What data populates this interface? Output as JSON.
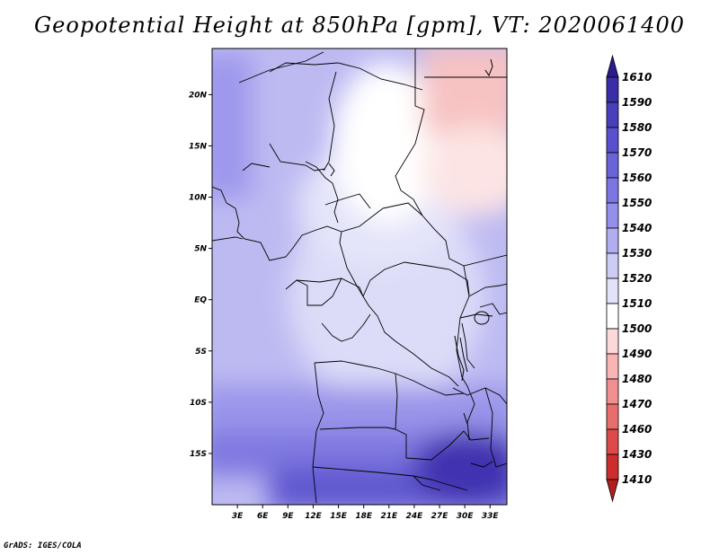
{
  "title": "Geopotential Height at 850hPa [gpm], VT: 2020061400",
  "footer": "GrADS: IGES/COLA",
  "map": {
    "lon_range": [
      0,
      35
    ],
    "lat_range": [
      -20,
      24.5
    ],
    "lon_ticks": [
      "3E",
      "6E",
      "9E",
      "12E",
      "15E",
      "18E",
      "21E",
      "24E",
      "27E",
      "30E",
      "33E"
    ],
    "lat_ticks": [
      "20N",
      "15N",
      "10N",
      "5N",
      "EQ",
      "5S",
      "10S",
      "15S"
    ]
  },
  "colorbar": {
    "levels": [
      "1610",
      "1590",
      "1580",
      "1570",
      "1560",
      "1550",
      "1540",
      "1530",
      "1520",
      "1510",
      "1500",
      "1490",
      "1480",
      "1470",
      "1460",
      "1430",
      "1410"
    ],
    "colors": [
      "#2a1a8e",
      "#3a2ea6",
      "#4a3fbb",
      "#5a4fcc",
      "#6b63d8",
      "#7d76e2",
      "#948fea",
      "#b0adf0",
      "#ccccf5",
      "#e2e2fa",
      "#ffffff",
      "#fdd8d8",
      "#f9b4b4",
      "#f19090",
      "#e86e6e",
      "#dc4a4a",
      "#cc2d2d",
      "#b01e1e"
    ]
  }
}
